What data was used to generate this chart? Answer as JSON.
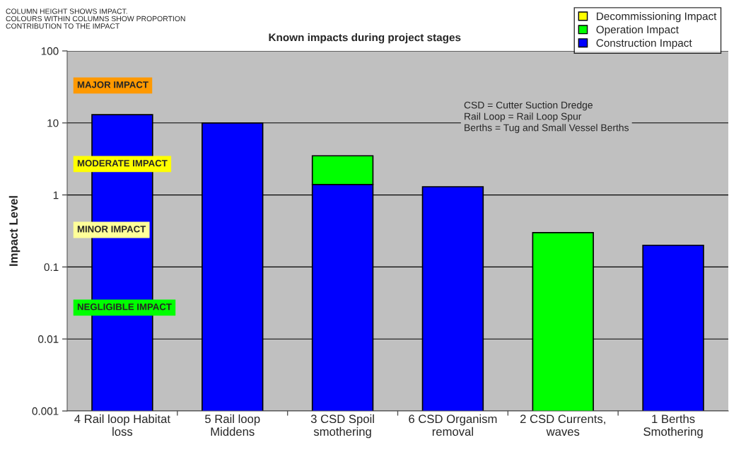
{
  "chart_data": {
    "type": "bar",
    "title": "Known impacts during project stages",
    "ylabel": "Impact Level",
    "categories": [
      "4 Rail loop Habitat\nloss",
      "5 Rail loop\nMiddens",
      "3 CSD Spoil\nsmothering",
      "6 CSD Organism\nremoval",
      "2 CSD Currents,\nwaves",
      "1 Berths\nSmothering"
    ],
    "series": [
      {
        "name": "Construction Impact",
        "color": "#0000ff",
        "values": [
          13,
          10,
          1.4,
          1.3,
          null,
          0.2
        ]
      },
      {
        "name": "Operation Impact",
        "color": "#00ff00",
        "values": [
          null,
          null,
          2.1,
          null,
          0.3,
          null
        ]
      },
      {
        "name": "Decommissioning Impact",
        "color": "#ffff00",
        "values": [
          null,
          null,
          null,
          null,
          null,
          null
        ]
      }
    ],
    "stacked": true,
    "log": "y",
    "ylim": [
      0.001,
      100
    ],
    "yticks": [
      0.001,
      0.01,
      0.1,
      1,
      10,
      100
    ],
    "grid": "y",
    "legend": "top right",
    "annotations": [
      "MAJOR IMPACT",
      "MODERATE IMPACT",
      "MINOR IMPACT",
      "NEGLIGIBLE IMPACT",
      "CSD = Cutter Suction Dredge\nRail Loop = Rail Loop Spur\nBerths = Tug and Small Vessel Berths",
      "COLUMN HEIGHT SHOWS IMPACT.\nCOLOURS WITHIN COLUMNS SHOW PROPORTION\nCONTRIBUTION TO THE IMPACT"
    ]
  }
}
